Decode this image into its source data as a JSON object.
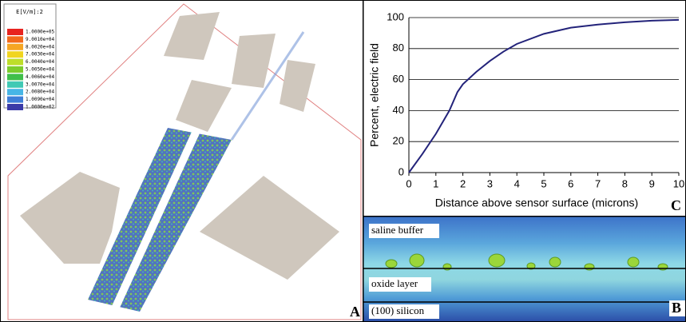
{
  "chart_data": {
    "type": "line",
    "xlabel": "Distance above sensor surface (microns)",
    "ylabel": "Percent, electric field",
    "x": [
      0,
      0.5,
      1,
      1.5,
      1.8,
      2,
      2.5,
      3,
      3.5,
      4,
      5,
      6,
      7,
      8,
      9,
      10
    ],
    "series": [
      {
        "color": "#23237a",
        "values": [
          0,
          12,
          25,
          40,
          52,
          57,
          65,
          72,
          78,
          83,
          89.5,
          93.5,
          95.5,
          97,
          98,
          98.5
        ]
      }
    ],
    "xlim": [
      0,
      10
    ],
    "xticks": [
      0,
      1,
      2,
      3,
      4,
      5,
      6,
      7,
      8,
      9,
      10
    ],
    "ylim": [
      0,
      100
    ],
    "yticks": [
      0,
      20,
      40,
      60,
      80,
      100
    ],
    "grid": true
  },
  "panel_A": {
    "label": "A",
    "legend": {
      "title": "E[V/m]:2",
      "entries": [
        {
          "label": "1.0000e+05",
          "color": "#e8231f"
        },
        {
          "label": "9.0010e+04",
          "color": "#f26a1c"
        },
        {
          "label": "8.0020e+04",
          "color": "#f6a623"
        },
        {
          "label": "7.0030e+04",
          "color": "#f1d51f"
        },
        {
          "label": "6.0040e+04",
          "color": "#bede2a"
        },
        {
          "label": "5.0050e+04",
          "color": "#7ccc2c"
        },
        {
          "label": "4.0060e+04",
          "color": "#3fbf4a"
        },
        {
          "label": "3.0070e+04",
          "color": "#40c9b4"
        },
        {
          "label": "2.0080e+04",
          "color": "#47b6e6"
        },
        {
          "label": "1.0090e+04",
          "color": "#3f7fd8"
        },
        {
          "label": "1.0000e+02",
          "color": "#3a3aa8"
        }
      ]
    }
  },
  "panel_C": {
    "label": "C"
  },
  "panel_B": {
    "label": "B",
    "layers": [
      "saline buffer",
      "oxide layer",
      "(100) silicon"
    ]
  }
}
